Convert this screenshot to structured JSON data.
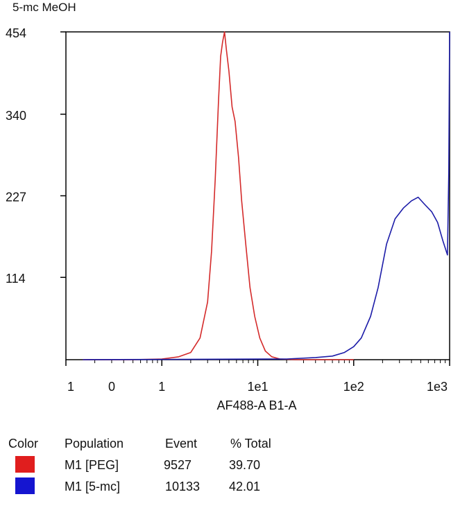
{
  "chart_data": {
    "type": "line",
    "title": "5-mc MeOH",
    "xlabel": "AF488-A B1-A",
    "ylabel": "",
    "x_scale": "log",
    "xlim": [
      0.1,
      1000
    ],
    "ylim": [
      0,
      454
    ],
    "x_tick_labels": [
      "1",
      "0",
      "1",
      "1e1",
      "1e2",
      "1e3"
    ],
    "y_tick_labels": [
      "454",
      "340",
      "227",
      "114"
    ],
    "y_ticks": [
      454,
      340,
      227,
      114
    ],
    "series": [
      {
        "name": "M1 [PEG]",
        "color": "#d42a2a",
        "x": [
          0.15,
          0.5,
          1.0,
          1.5,
          2.0,
          2.5,
          3.0,
          3.3,
          3.6,
          3.9,
          4.1,
          4.3,
          4.5,
          4.7,
          5.0,
          5.4,
          5.8,
          6.3,
          6.8,
          7.5,
          8.3,
          9.3,
          10.5,
          12.0,
          14.0,
          17.0,
          25.0,
          50.0,
          100.0
        ],
        "y": [
          0,
          0,
          1,
          4,
          10,
          30,
          80,
          150,
          250,
          360,
          420,
          440,
          454,
          430,
          400,
          350,
          330,
          280,
          220,
          160,
          100,
          60,
          30,
          12,
          4,
          1,
          0,
          0,
          0
        ]
      },
      {
        "name": "M1 [5-mc]",
        "color": "#1c1ca8",
        "x": [
          0.15,
          20.0,
          40.0,
          60.0,
          80.0,
          100.0,
          120.0,
          150.0,
          180.0,
          220.0,
          270.0,
          330.0,
          400.0,
          470.0,
          550.0,
          650.0,
          750.0,
          850.0,
          950.0,
          980.0,
          1000.0
        ],
        "y": [
          0,
          1,
          3,
          5,
          10,
          18,
          30,
          60,
          100,
          160,
          195,
          210,
          220,
          225,
          215,
          205,
          190,
          165,
          145,
          260,
          454
        ]
      }
    ]
  },
  "legend": {
    "headers": {
      "color": "Color",
      "population": "Population",
      "event": "Event",
      "total": "% Total"
    },
    "rows": [
      {
        "color": "#e01e1e",
        "population": "M1 [PEG]",
        "event": "9527",
        "total": "39.70"
      },
      {
        "color": "#1515d0",
        "population": "M1 [5-mc]",
        "event": "10133",
        "total": "42.01"
      }
    ]
  }
}
